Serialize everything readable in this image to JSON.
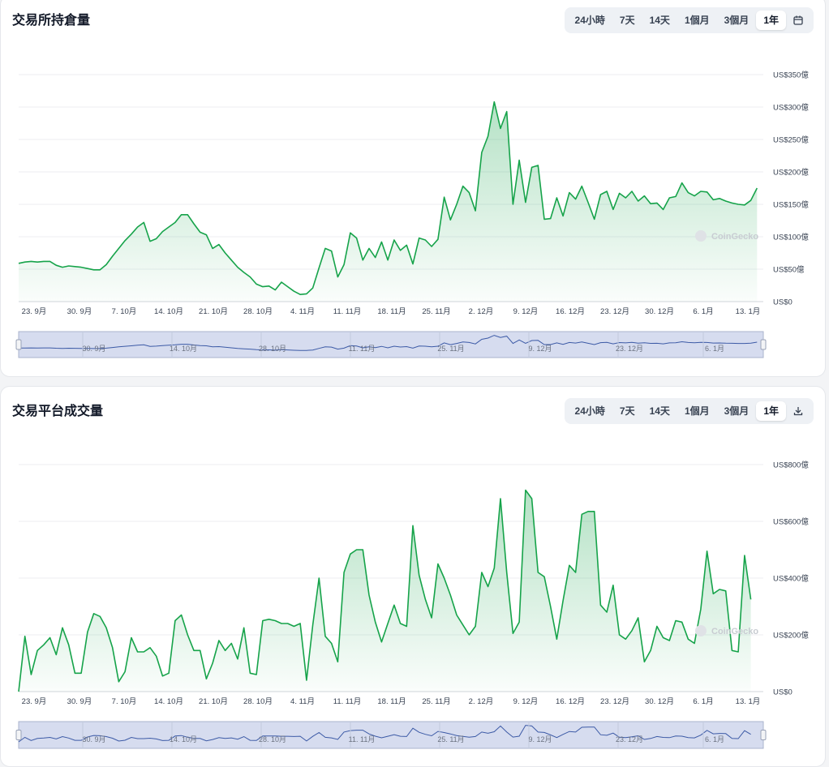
{
  "colors": {
    "line": "#16a34a",
    "navigator": "#a8b4d8"
  },
  "icons": {
    "calendar": "calendar-icon",
    "download": "download-icon"
  },
  "watermark": "CoinGecko",
  "charts": [
    {
      "id": "oi",
      "title": "交易所持倉量",
      "tabs": [
        "24小時",
        "7天",
        "14天",
        "1個月",
        "3個月",
        "1年"
      ],
      "active_tab": "1年",
      "action_icon": "calendar-icon"
    },
    {
      "id": "vol",
      "title": "交易平台成交量",
      "tabs": [
        "24小時",
        "7天",
        "14天",
        "1個月",
        "3個月",
        "1年"
      ],
      "active_tab": "1年",
      "action_icon": "download-icon"
    }
  ],
  "chart_data": [
    {
      "type": "area",
      "title": "交易所持倉量",
      "ylim": [
        0,
        350
      ],
      "y_unit": "億 USD",
      "y_ticks": [
        "US$0",
        "US$50億",
        "US$100億",
        "US$150億",
        "US$200億",
        "US$250億",
        "US$300億",
        "US$350億"
      ],
      "x_ticks": [
        "23. 9月",
        "30. 9月",
        "7. 10月",
        "14. 10月",
        "21. 10月",
        "28. 10月",
        "4. 11月",
        "11. 11月",
        "18. 11月",
        "25. 11月",
        "2. 12月",
        "9. 12月",
        "16. 12月",
        "23. 12月",
        "30. 12月",
        "6. 1月",
        "13. 1月"
      ],
      "navigator_labels": [
        "30. 9月",
        "14. 10月",
        "28. 10月",
        "11. 11月",
        "25. 11月",
        "9. 12月",
        "23. 12月",
        "6. 1月"
      ],
      "x_range_days": [
        -2,
        117
      ],
      "series": [
        {
          "points": [
            [
              -2,
              59
            ],
            [
              -1,
              61
            ],
            [
              0,
              62
            ],
            [
              1,
              61
            ],
            [
              2,
              62
            ],
            [
              3,
              62
            ],
            [
              4,
              56
            ],
            [
              5,
              53
            ],
            [
              6,
              55
            ],
            [
              7,
              54
            ],
            [
              8,
              53
            ],
            [
              9,
              51
            ],
            [
              10,
              49
            ],
            [
              11,
              49
            ],
            [
              12,
              57
            ],
            [
              13,
              70
            ],
            [
              14,
              82
            ],
            [
              15,
              94
            ],
            [
              16,
              104
            ],
            [
              17,
              115
            ],
            [
              18,
              122
            ],
            [
              19,
              93
            ],
            [
              20,
              97
            ],
            [
              21,
              108
            ],
            [
              22,
              115
            ],
            [
              23,
              122
            ],
            [
              24,
              134
            ],
            [
              25,
              134
            ],
            [
              26,
              120
            ],
            [
              27,
              107
            ],
            [
              28,
              103
            ],
            [
              29,
              82
            ],
            [
              30,
              88
            ],
            [
              31,
              75
            ],
            [
              32,
              64
            ],
            [
              33,
              53
            ],
            [
              34,
              45
            ],
            [
              35,
              38
            ],
            [
              36,
              27
            ],
            [
              37,
              23
            ],
            [
              38,
              24
            ],
            [
              39,
              18
            ],
            [
              40,
              30
            ],
            [
              41,
              23
            ],
            [
              42,
              16
            ],
            [
              43,
              11
            ],
            [
              44,
              12
            ],
            [
              45,
              21
            ],
            [
              46,
              52
            ],
            [
              47,
              82
            ],
            [
              48,
              78
            ],
            [
              49,
              38
            ],
            [
              50,
              57
            ],
            [
              51,
              106
            ],
            [
              52,
              98
            ],
            [
              53,
              64
            ],
            [
              54,
              82
            ],
            [
              55,
              68
            ],
            [
              56,
              92
            ],
            [
              57,
              64
            ],
            [
              58,
              95
            ],
            [
              59,
              79
            ],
            [
              60,
              87
            ],
            [
              61,
              58
            ],
            [
              62,
              98
            ],
            [
              63,
              95
            ],
            [
              64,
              85
            ],
            [
              65,
              96
            ],
            [
              66,
              161
            ],
            [
              67,
              126
            ],
            [
              68,
              150
            ],
            [
              69,
              178
            ],
            [
              70,
              168
            ],
            [
              71,
              140
            ],
            [
              72,
              230
            ],
            [
              73,
              255
            ],
            [
              74,
              308
            ],
            [
              75,
              267
            ],
            [
              76,
              293
            ],
            [
              77,
              150
            ],
            [
              78,
              218
            ],
            [
              79,
              153
            ],
            [
              80,
              207
            ],
            [
              81,
              210
            ],
            [
              82,
              127
            ],
            [
              83,
              128
            ],
            [
              84,
              160
            ],
            [
              85,
              132
            ],
            [
              86,
              168
            ],
            [
              87,
              158
            ],
            [
              88,
              178
            ],
            [
              89,
              153
            ],
            [
              90,
              127
            ],
            [
              91,
              165
            ],
            [
              92,
              170
            ],
            [
              93,
              142
            ],
            [
              94,
              167
            ],
            [
              95,
              160
            ],
            [
              96,
              170
            ],
            [
              97,
              155
            ],
            [
              98,
              163
            ],
            [
              99,
              151
            ],
            [
              100,
              152
            ],
            [
              101,
              142
            ],
            [
              102,
              160
            ],
            [
              103,
              162
            ],
            [
              104,
              183
            ],
            [
              105,
              168
            ],
            [
              106,
              163
            ],
            [
              107,
              170
            ],
            [
              108,
              169
            ],
            [
              109,
              157
            ],
            [
              110,
              159
            ],
            [
              111,
              155
            ],
            [
              112,
              152
            ],
            [
              113,
              150
            ],
            [
              114,
              149
            ],
            [
              115,
              156
            ],
            [
              116,
              175
            ]
          ]
        }
      ]
    },
    {
      "type": "area",
      "title": "交易平台成交量",
      "ylim": [
        0,
        800
      ],
      "y_unit": "億 USD",
      "y_ticks": [
        "US$0",
        "US$200億",
        "US$400億",
        "US$600億",
        "US$800億"
      ],
      "x_ticks": [
        "23. 9月",
        "30. 9月",
        "7. 10月",
        "14. 10月",
        "21. 10月",
        "28. 10月",
        "4. 11月",
        "11. 11月",
        "18. 11月",
        "25. 11月",
        "2. 12月",
        "9. 12月",
        "16. 12月",
        "23. 12月",
        "30. 12月",
        "6. 1月",
        "13. 1月"
      ],
      "navigator_labels": [
        "30. 9月",
        "14. 10月",
        "28. 10月",
        "11. 11月",
        "25. 11月",
        "9. 12月",
        "23. 12月",
        "6. 1月"
      ],
      "x_range_days": [
        -2,
        117
      ],
      "series": [
        {
          "points": [
            [
              -2,
              0
            ],
            [
              -1,
              195
            ],
            [
              0,
              60
            ],
            [
              1,
              145
            ],
            [
              2,
              165
            ],
            [
              3,
              190
            ],
            [
              4,
              130
            ],
            [
              5,
              225
            ],
            [
              6,
              165
            ],
            [
              7,
              65
            ],
            [
              8,
              65
            ],
            [
              9,
              210
            ],
            [
              10,
              275
            ],
            [
              11,
              265
            ],
            [
              12,
              225
            ],
            [
              13,
              155
            ],
            [
              14,
              35
            ],
            [
              15,
              70
            ],
            [
              16,
              190
            ],
            [
              17,
              140
            ],
            [
              18,
              140
            ],
            [
              19,
              155
            ],
            [
              20,
              125
            ],
            [
              21,
              55
            ],
            [
              22,
              65
            ],
            [
              23,
              250
            ],
            [
              24,
              270
            ],
            [
              25,
              200
            ],
            [
              26,
              145
            ],
            [
              27,
              145
            ],
            [
              28,
              45
            ],
            [
              29,
              100
            ],
            [
              30,
              180
            ],
            [
              31,
              145
            ],
            [
              32,
              170
            ],
            [
              33,
              115
            ],
            [
              34,
              225
            ],
            [
              35,
              65
            ],
            [
              36,
              60
            ],
            [
              37,
              250
            ],
            [
              38,
              255
            ],
            [
              39,
              250
            ],
            [
              40,
              240
            ],
            [
              41,
              240
            ],
            [
              42,
              230
            ],
            [
              43,
              240
            ],
            [
              44,
              40
            ],
            [
              45,
              235
            ],
            [
              46,
              400
            ],
            [
              47,
              195
            ],
            [
              48,
              170
            ],
            [
              49,
              105
            ],
            [
              50,
              420
            ],
            [
              51,
              485
            ],
            [
              52,
              500
            ],
            [
              53,
              500
            ],
            [
              54,
              340
            ],
            [
              55,
              245
            ],
            [
              56,
              175
            ],
            [
              57,
              240
            ],
            [
              58,
              305
            ],
            [
              59,
              240
            ],
            [
              60,
              230
            ],
            [
              61,
              585
            ],
            [
              62,
              410
            ],
            [
              63,
              325
            ],
            [
              64,
              260
            ],
            [
              65,
              450
            ],
            [
              66,
              400
            ],
            [
              67,
              340
            ],
            [
              68,
              270
            ],
            [
              69,
              235
            ],
            [
              70,
              200
            ],
            [
              71,
              230
            ],
            [
              72,
              420
            ],
            [
              73,
              370
            ],
            [
              74,
              435
            ],
            [
              75,
              680
            ],
            [
              76,
              420
            ],
            [
              77,
              205
            ],
            [
              78,
              245
            ],
            [
              79,
              710
            ],
            [
              80,
              680
            ],
            [
              81,
              420
            ],
            [
              82,
              405
            ],
            [
              83,
              300
            ],
            [
              84,
              185
            ],
            [
              85,
              320
            ],
            [
              86,
              445
            ],
            [
              87,
              420
            ],
            [
              88,
              625
            ],
            [
              89,
              635
            ],
            [
              90,
              635
            ],
            [
              91,
              305
            ],
            [
              92,
              280
            ],
            [
              93,
              375
            ],
            [
              94,
              200
            ],
            [
              95,
              185
            ],
            [
              96,
              215
            ],
            [
              97,
              260
            ],
            [
              98,
              105
            ],
            [
              99,
              145
            ],
            [
              100,
              230
            ],
            [
              101,
              190
            ],
            [
              102,
              180
            ],
            [
              103,
              250
            ],
            [
              104,
              245
            ],
            [
              105,
              185
            ],
            [
              106,
              170
            ],
            [
              107,
              290
            ],
            [
              108,
              495
            ],
            [
              109,
              345
            ],
            [
              110,
              360
            ],
            [
              111,
              355
            ],
            [
              112,
              145
            ],
            [
              113,
              140
            ],
            [
              114,
              480
            ],
            [
              115,
              325
            ]
          ]
        }
      ]
    }
  ]
}
